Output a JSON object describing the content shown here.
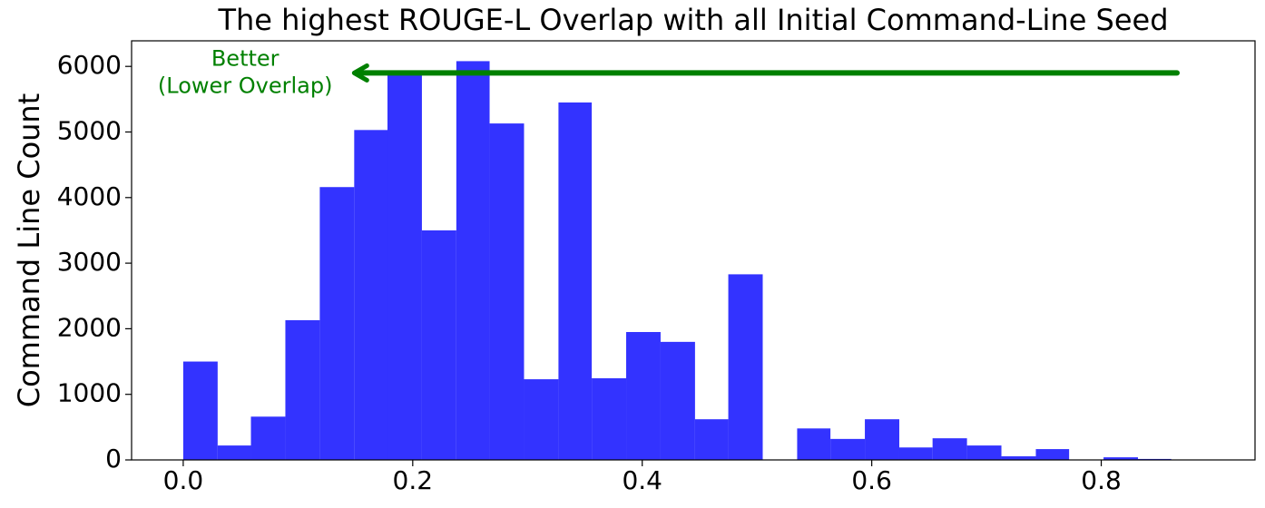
{
  "chart_data": {
    "type": "histogram",
    "title": "The highest ROUGE-L Overlap with all Initial Command-Line Seed",
    "y_label": "Command Line Count",
    "color": "#3333ff",
    "bins": [
      0,
      0.03,
      0.059,
      0.089,
      0.119,
      0.149,
      0.178,
      0.208,
      0.238,
      0.267,
      0.297,
      0.327,
      0.356,
      0.386,
      0.416,
      0.446,
      0.475,
      0.505,
      0.535,
      0.564,
      0.594,
      0.624,
      0.653,
      0.683,
      0.713,
      0.743,
      0.772,
      0.802,
      0.832,
      0.861
    ],
    "values": [
      1500,
      220,
      660,
      2130,
      4160,
      5030,
      5900,
      3500,
      6080,
      5130,
      1230,
      5450,
      1245,
      1950,
      1800,
      620,
      2830,
      0,
      480,
      320,
      620,
      190,
      330,
      220,
      55,
      165,
      0,
      40,
      15
    ],
    "xlim": [
      -0.045,
      0.934
    ],
    "ylim": [
      0,
      6390
    ],
    "xticks": [
      {
        "value": 0,
        "label": "0.0"
      },
      {
        "value": 0.2,
        "label": "0.2"
      },
      {
        "value": 0.4,
        "label": "0.4"
      },
      {
        "value": 0.6,
        "label": "0.6"
      },
      {
        "value": 0.8,
        "label": "0.8"
      }
    ],
    "yticks": [
      0,
      1000,
      2000,
      3000,
      4000,
      5000,
      6000
    ],
    "annotation": {
      "text": [
        "Better",
        "(Lower Overlap)"
      ],
      "text_xy": [
        0.054,
        5900
      ],
      "arrow_from": [
        0.866,
        5900
      ],
      "arrow_to": [
        0.149,
        5900
      ],
      "color": "#008000"
    }
  }
}
